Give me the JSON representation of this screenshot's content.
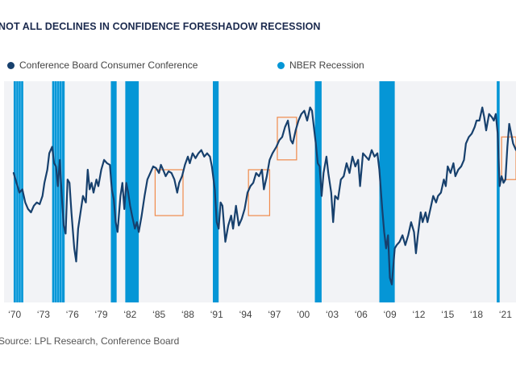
{
  "chart_data": {
    "type": "line",
    "title": "NOT ALL DECLINES IN CONFIDENCE FORESHADOW RECESSION",
    "xlabel": "",
    "ylabel": "",
    "xlim": [
      1968.9,
      2022.1
    ],
    "ylim": [
      15,
      150
    ],
    "grid": false,
    "legend_position": "top",
    "legend": [
      {
        "label": "Conference Board Consumer Conference",
        "color": "#17406d",
        "marker": "circle"
      },
      {
        "label": "NBER Recession",
        "color": "#0596d6",
        "marker": "circle"
      }
    ],
    "x_ticks": [
      {
        "value": 1970,
        "label": "‘70"
      },
      {
        "value": 1973,
        "label": "‘73"
      },
      {
        "value": 1976,
        "label": "‘76"
      },
      {
        "value": 1979,
        "label": "‘79"
      },
      {
        "value": 1982,
        "label": "‘82"
      },
      {
        "value": 1985,
        "label": "‘85"
      },
      {
        "value": 1988,
        "label": "‘88"
      },
      {
        "value": 1991,
        "label": "‘91"
      },
      {
        "value": 1994,
        "label": "‘94"
      },
      {
        "value": 1997,
        "label": "‘97"
      },
      {
        "value": 2000,
        "label": "‘00"
      },
      {
        "value": 2003,
        "label": "‘03"
      },
      {
        "value": 2006,
        "label": "‘06"
      },
      {
        "value": 2009,
        "label": "‘09"
      },
      {
        "value": 2012,
        "label": "‘12"
      },
      {
        "value": 2015,
        "label": "‘15"
      },
      {
        "value": 2018,
        "label": "‘18"
      },
      {
        "value": 2021,
        "label": "‘21"
      }
    ],
    "recessions": [
      {
        "start": 1969.9,
        "end": 1970.9
      },
      {
        "start": 1973.9,
        "end": 1975.2
      },
      {
        "start": 1980.0,
        "end": 1980.6
      },
      {
        "start": 1981.5,
        "end": 1982.9
      },
      {
        "start": 1990.6,
        "end": 1991.2
      },
      {
        "start": 2001.2,
        "end": 2001.9
      },
      {
        "start": 2007.9,
        "end": 2009.5
      },
      {
        "start": 2020.1,
        "end": 2020.4
      }
    ],
    "highlight_boxes": [
      {
        "x0": 1984.6,
        "x1": 1987.5,
        "y0": 68,
        "y1": 96
      },
      {
        "x0": 1994.3,
        "x1": 1996.5,
        "y0": 68,
        "y1": 96
      },
      {
        "x0": 1997.3,
        "x1": 1999.3,
        "y0": 102,
        "y1": 128
      },
      {
        "x0": 2020.6,
        "x1": 2022.1,
        "y0": 90,
        "y1": 116
      }
    ],
    "series": [
      {
        "name": "Conference Board Consumer Conference",
        "color": "#17406d",
        "points": [
          [
            1969.9,
            94
          ],
          [
            1970.2,
            88
          ],
          [
            1970.5,
            82
          ],
          [
            1970.8,
            84
          ],
          [
            1971.1,
            76
          ],
          [
            1971.4,
            72
          ],
          [
            1971.7,
            70
          ],
          [
            1972.0,
            74
          ],
          [
            1972.3,
            76
          ],
          [
            1972.6,
            75
          ],
          [
            1972.9,
            80
          ],
          [
            1973.1,
            88
          ],
          [
            1973.4,
            96
          ],
          [
            1973.6,
            106
          ],
          [
            1973.9,
            110
          ],
          [
            1974.1,
            100
          ],
          [
            1974.3,
            98
          ],
          [
            1974.5,
            86
          ],
          [
            1974.7,
            102
          ],
          [
            1974.9,
            80
          ],
          [
            1975.1,
            62
          ],
          [
            1975.3,
            57
          ],
          [
            1975.5,
            90
          ],
          [
            1975.7,
            88
          ],
          [
            1975.9,
            70
          ],
          [
            1976.2,
            48
          ],
          [
            1976.4,
            40
          ],
          [
            1976.6,
            60
          ],
          [
            1976.9,
            72
          ],
          [
            1977.1,
            80
          ],
          [
            1977.4,
            76
          ],
          [
            1977.6,
            96
          ],
          [
            1977.8,
            84
          ],
          [
            1978.0,
            88
          ],
          [
            1978.2,
            82
          ],
          [
            1978.5,
            90
          ],
          [
            1978.7,
            86
          ],
          [
            1979.0,
            96
          ],
          [
            1979.3,
            102
          ],
          [
            1979.6,
            100
          ],
          [
            1979.9,
            99
          ],
          [
            1980.1,
            84
          ],
          [
            1980.3,
            78
          ],
          [
            1980.5,
            64
          ],
          [
            1980.7,
            58
          ],
          [
            1981.0,
            80
          ],
          [
            1981.2,
            88
          ],
          [
            1981.4,
            72
          ],
          [
            1981.6,
            88
          ],
          [
            1981.8,
            82
          ],
          [
            1982.0,
            74
          ],
          [
            1982.2,
            68
          ],
          [
            1982.5,
            60
          ],
          [
            1982.7,
            64
          ],
          [
            1982.9,
            58
          ],
          [
            1983.2,
            68
          ],
          [
            1983.5,
            80
          ],
          [
            1983.8,
            90
          ],
          [
            1984.1,
            94
          ],
          [
            1984.4,
            98
          ],
          [
            1984.7,
            97
          ],
          [
            1985.0,
            94
          ],
          [
            1985.2,
            99
          ],
          [
            1985.5,
            95
          ],
          [
            1985.7,
            92
          ],
          [
            1986.0,
            95
          ],
          [
            1986.3,
            94
          ],
          [
            1986.6,
            90
          ],
          [
            1986.9,
            82
          ],
          [
            1987.1,
            88
          ],
          [
            1987.4,
            92
          ],
          [
            1987.7,
            99
          ],
          [
            1988.0,
            104
          ],
          [
            1988.2,
            100
          ],
          [
            1988.5,
            106
          ],
          [
            1988.8,
            103
          ],
          [
            1989.1,
            106
          ],
          [
            1989.4,
            108
          ],
          [
            1989.7,
            104
          ],
          [
            1990.0,
            106
          ],
          [
            1990.3,
            104
          ],
          [
            1990.5,
            98
          ],
          [
            1990.8,
            84
          ],
          [
            1991.0,
            64
          ],
          [
            1991.2,
            60
          ],
          [
            1991.4,
            76
          ],
          [
            1991.6,
            74
          ],
          [
            1991.9,
            52
          ],
          [
            1992.2,
            62
          ],
          [
            1992.5,
            68
          ],
          [
            1992.7,
            60
          ],
          [
            1993.0,
            74
          ],
          [
            1993.3,
            62
          ],
          [
            1993.6,
            66
          ],
          [
            1993.9,
            72
          ],
          [
            1994.2,
            82
          ],
          [
            1994.5,
            86
          ],
          [
            1994.8,
            88
          ],
          [
            1995.1,
            94
          ],
          [
            1995.4,
            92
          ],
          [
            1995.7,
            96
          ],
          [
            1995.9,
            84
          ],
          [
            1996.2,
            92
          ],
          [
            1996.5,
            102
          ],
          [
            1996.8,
            106
          ],
          [
            1997.2,
            110
          ],
          [
            1997.5,
            114
          ],
          [
            1997.8,
            116
          ],
          [
            1998.1,
            122
          ],
          [
            1998.4,
            126
          ],
          [
            1998.7,
            114
          ],
          [
            1998.9,
            112
          ],
          [
            1999.2,
            120
          ],
          [
            1999.5,
            126
          ],
          [
            1999.8,
            130
          ],
          [
            2000.1,
            132
          ],
          [
            2000.4,
            126
          ],
          [
            2000.7,
            134
          ],
          [
            2000.9,
            132
          ],
          [
            2001.1,
            122
          ],
          [
            2001.3,
            112
          ],
          [
            2001.5,
            100
          ],
          [
            2001.7,
            98
          ],
          [
            2001.9,
            80
          ],
          [
            2002.1,
            94
          ],
          [
            2002.4,
            104
          ],
          [
            2002.6,
            94
          ],
          [
            2002.9,
            82
          ],
          [
            2003.1,
            64
          ],
          [
            2003.3,
            80
          ],
          [
            2003.6,
            78
          ],
          [
            2003.9,
            90
          ],
          [
            2004.2,
            92
          ],
          [
            2004.5,
            100
          ],
          [
            2004.8,
            94
          ],
          [
            2005.1,
            104
          ],
          [
            2005.4,
            98
          ],
          [
            2005.7,
            102
          ],
          [
            2005.9,
            86
          ],
          [
            2006.2,
            106
          ],
          [
            2006.5,
            104
          ],
          [
            2006.8,
            102
          ],
          [
            2007.1,
            108
          ],
          [
            2007.4,
            104
          ],
          [
            2007.7,
            106
          ],
          [
            2007.9,
            96
          ],
          [
            2008.2,
            72
          ],
          [
            2008.4,
            58
          ],
          [
            2008.6,
            48
          ],
          [
            2008.8,
            56
          ],
          [
            2009.0,
            30
          ],
          [
            2009.2,
            26
          ],
          [
            2009.5,
            48
          ],
          [
            2009.7,
            50
          ],
          [
            2010.0,
            52
          ],
          [
            2010.3,
            56
          ],
          [
            2010.6,
            50
          ],
          [
            2010.9,
            56
          ],
          [
            2011.2,
            64
          ],
          [
            2011.5,
            58
          ],
          [
            2011.7,
            45
          ],
          [
            2011.9,
            56
          ],
          [
            2012.2,
            70
          ],
          [
            2012.4,
            64
          ],
          [
            2012.7,
            70
          ],
          [
            2012.9,
            64
          ],
          [
            2013.2,
            72
          ],
          [
            2013.5,
            80
          ],
          [
            2013.8,
            76
          ],
          [
            2014.0,
            80
          ],
          [
            2014.3,
            82
          ],
          [
            2014.6,
            90
          ],
          [
            2014.8,
            86
          ],
          [
            2015.0,
            98
          ],
          [
            2015.3,
            94
          ],
          [
            2015.6,
            100
          ],
          [
            2015.8,
            92
          ],
          [
            2016.1,
            96
          ],
          [
            2016.4,
            98
          ],
          [
            2016.7,
            102
          ],
          [
            2016.9,
            112
          ],
          [
            2017.2,
            116
          ],
          [
            2017.5,
            118
          ],
          [
            2017.8,
            122
          ],
          [
            2018.0,
            126
          ],
          [
            2018.3,
            126
          ],
          [
            2018.6,
            134
          ],
          [
            2018.8,
            128
          ],
          [
            2019.0,
            120
          ],
          [
            2019.3,
            130
          ],
          [
            2019.6,
            128
          ],
          [
            2019.8,
            126
          ],
          [
            2020.0,
            130
          ],
          [
            2020.2,
            118
          ],
          [
            2020.4,
            86
          ],
          [
            2020.6,
            92
          ],
          [
            2020.8,
            88
          ],
          [
            2021.0,
            90
          ],
          [
            2021.2,
            110
          ],
          [
            2021.4,
            124
          ],
          [
            2021.6,
            118
          ],
          [
            2021.8,
            112
          ],
          [
            2022.1,
            108
          ]
        ]
      }
    ]
  },
  "header": {
    "title": "NOT ALL DECLINES IN CONFIDENCE FORESHADOW RECESSION"
  },
  "legend": {
    "series_label": "Conference Board Consumer Conference",
    "recession_label": "NBER Recession",
    "series_color": "#17406d",
    "recession_color": "#0596d6"
  },
  "footer": {
    "source": "Source: LPL Research, Conference Board"
  },
  "colors": {
    "plot_background": "#f2f3f6",
    "line": "#17406d",
    "recession": "#0596d6",
    "highlight_box": "#f08a4b",
    "title": "#1b2a4e"
  }
}
